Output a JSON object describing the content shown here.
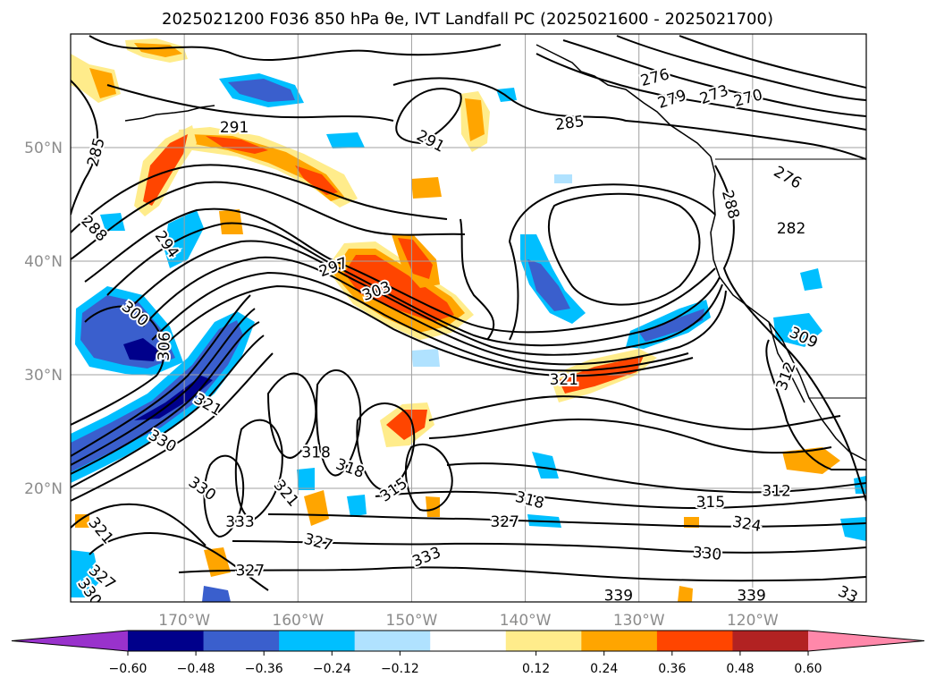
{
  "chart_data": {
    "type": "contour-map",
    "title": "2025021200 F036 850 hPa θe, IVT Landfall PC (2025021600 - 2025021700)",
    "lon_range": [
      -180,
      -110
    ],
    "lat_range": [
      10,
      60
    ],
    "lon_ticks": [
      -170,
      -160,
      -150,
      -140,
      -130,
      -120
    ],
    "lon_tick_labels": [
      "170°W",
      "160°W",
      "150°W",
      "140°W",
      "130°W",
      "120°W"
    ],
    "lat_ticks": [
      20,
      30,
      40,
      50
    ],
    "lat_tick_labels": [
      "20°N",
      "30°N",
      "40°N",
      "50°N"
    ],
    "grid": true,
    "colorbar": {
      "orientation": "horizontal",
      "extend": "both",
      "levels": [
        -0.72,
        -0.6,
        -0.48,
        -0.36,
        -0.24,
        -0.12,
        0.12,
        0.24,
        0.36,
        0.48,
        0.6,
        0.72
      ],
      "tick_values": [
        -0.6,
        -0.48,
        -0.36,
        -0.24,
        -0.12,
        0.12,
        0.24,
        0.36,
        0.48,
        0.6
      ],
      "tick_labels": [
        "−0.60",
        "−0.48",
        "−0.36",
        "−0.24",
        "−0.12",
        "0.12",
        "0.24",
        "0.36",
        "0.48",
        "0.60"
      ],
      "colors": [
        "#9932cc",
        "#00008b",
        "#3a5fcd",
        "#00bfff",
        "#b0e2ff",
        "#ffffff",
        "#ffec8b",
        "#ffa500",
        "#ff4500",
        "#b22222",
        "#ff88aa"
      ]
    },
    "theta_e_contour_labels": [
      {
        "value": "276",
        "lon": -128.6,
        "lat": 56.2,
        "angle": 15
      },
      {
        "value": "279",
        "lon": -127.1,
        "lat": 54.3,
        "angle": 18
      },
      {
        "value": "273",
        "lon": -123.4,
        "lat": 54.7,
        "angle": 20
      },
      {
        "value": "270",
        "lon": -120.4,
        "lat": 54.4,
        "angle": 15
      },
      {
        "value": "291",
        "lon": -165.6,
        "lat": 51.8,
        "angle": 0
      },
      {
        "value": "291",
        "lon": -148.3,
        "lat": 50.6,
        "angle": -28
      },
      {
        "value": "285",
        "lon": -136.1,
        "lat": 52.2,
        "angle": 8
      },
      {
        "value": "285",
        "lon": -177.8,
        "lat": 49.6,
        "angle": 75
      },
      {
        "value": "288",
        "lon": -177.9,
        "lat": 42.9,
        "angle": -45
      },
      {
        "value": "294",
        "lon": -171.5,
        "lat": 41.5,
        "angle": -55
      },
      {
        "value": "297",
        "lon": -156.9,
        "lat": 39.5,
        "angle": 20
      },
      {
        "value": "303",
        "lon": -153.1,
        "lat": 37.4,
        "angle": 20
      },
      {
        "value": "300",
        "lon": -174.3,
        "lat": 35.4,
        "angle": -40
      },
      {
        "value": "306",
        "lon": -171.8,
        "lat": 32.5,
        "angle": 88
      },
      {
        "value": "321",
        "lon": -167.9,
        "lat": 27.4,
        "angle": -30
      },
      {
        "value": "330",
        "lon": -171.9,
        "lat": 24.2,
        "angle": -30
      },
      {
        "value": "318",
        "lon": -158.4,
        "lat": 23.2,
        "angle": 0
      },
      {
        "value": "318",
        "lon": -155.4,
        "lat": 21.8,
        "angle": -20
      },
      {
        "value": "315",
        "lon": -151.6,
        "lat": 19.9,
        "angle": 35
      },
      {
        "value": "330",
        "lon": -168.4,
        "lat": 20.0,
        "angle": -35
      },
      {
        "value": "321",
        "lon": -161.0,
        "lat": 19.6,
        "angle": -50
      },
      {
        "value": "333",
        "lon": -165.1,
        "lat": 17.1,
        "angle": 0
      },
      {
        "value": "327",
        "lon": -158.2,
        "lat": 15.3,
        "angle": -15
      },
      {
        "value": "327",
        "lon": -164.2,
        "lat": 12.8,
        "angle": 0
      },
      {
        "value": "333",
        "lon": -148.7,
        "lat": 14.0,
        "angle": 22
      },
      {
        "value": "321",
        "lon": -177.3,
        "lat": 16.3,
        "angle": -50
      },
      {
        "value": "327",
        "lon": -177.2,
        "lat": 12.2,
        "angle": -40
      },
      {
        "value": "330",
        "lon": -178.3,
        "lat": 10.9,
        "angle": -55
      },
      {
        "value": "321",
        "lon": -136.6,
        "lat": 29.6,
        "angle": 0
      },
      {
        "value": "318",
        "lon": -139.6,
        "lat": 19.0,
        "angle": -15
      },
      {
        "value": "327",
        "lon": -141.8,
        "lat": 17.1,
        "angle": 0
      },
      {
        "value": "315",
        "lon": -123.7,
        "lat": 18.8,
        "angle": 0
      },
      {
        "value": "312",
        "lon": -117.9,
        "lat": 19.8,
        "angle": 0
      },
      {
        "value": "324",
        "lon": -120.5,
        "lat": 16.9,
        "angle": -10
      },
      {
        "value": "330",
        "lon": -124.0,
        "lat": 14.3,
        "angle": -5
      },
      {
        "value": "339",
        "lon": -131.8,
        "lat": 10.6,
        "angle": 0
      },
      {
        "value": "339",
        "lon": -120.1,
        "lat": 10.6,
        "angle": 0
      },
      {
        "value": "33",
        "lon": -111.6,
        "lat": 10.7,
        "angle": -25
      },
      {
        "value": "309",
        "lon": -115.5,
        "lat": 33.3,
        "angle": -25
      },
      {
        "value": "312",
        "lon": -117.1,
        "lat": 29.9,
        "angle": 70
      },
      {
        "value": "282",
        "lon": -116.6,
        "lat": 42.9,
        "angle": 0
      },
      {
        "value": "276",
        "lon": -116.9,
        "lat": 47.4,
        "angle": -30
      },
      {
        "value": "288",
        "lon": -121.9,
        "lat": 45.0,
        "angle": -75
      }
    ]
  }
}
